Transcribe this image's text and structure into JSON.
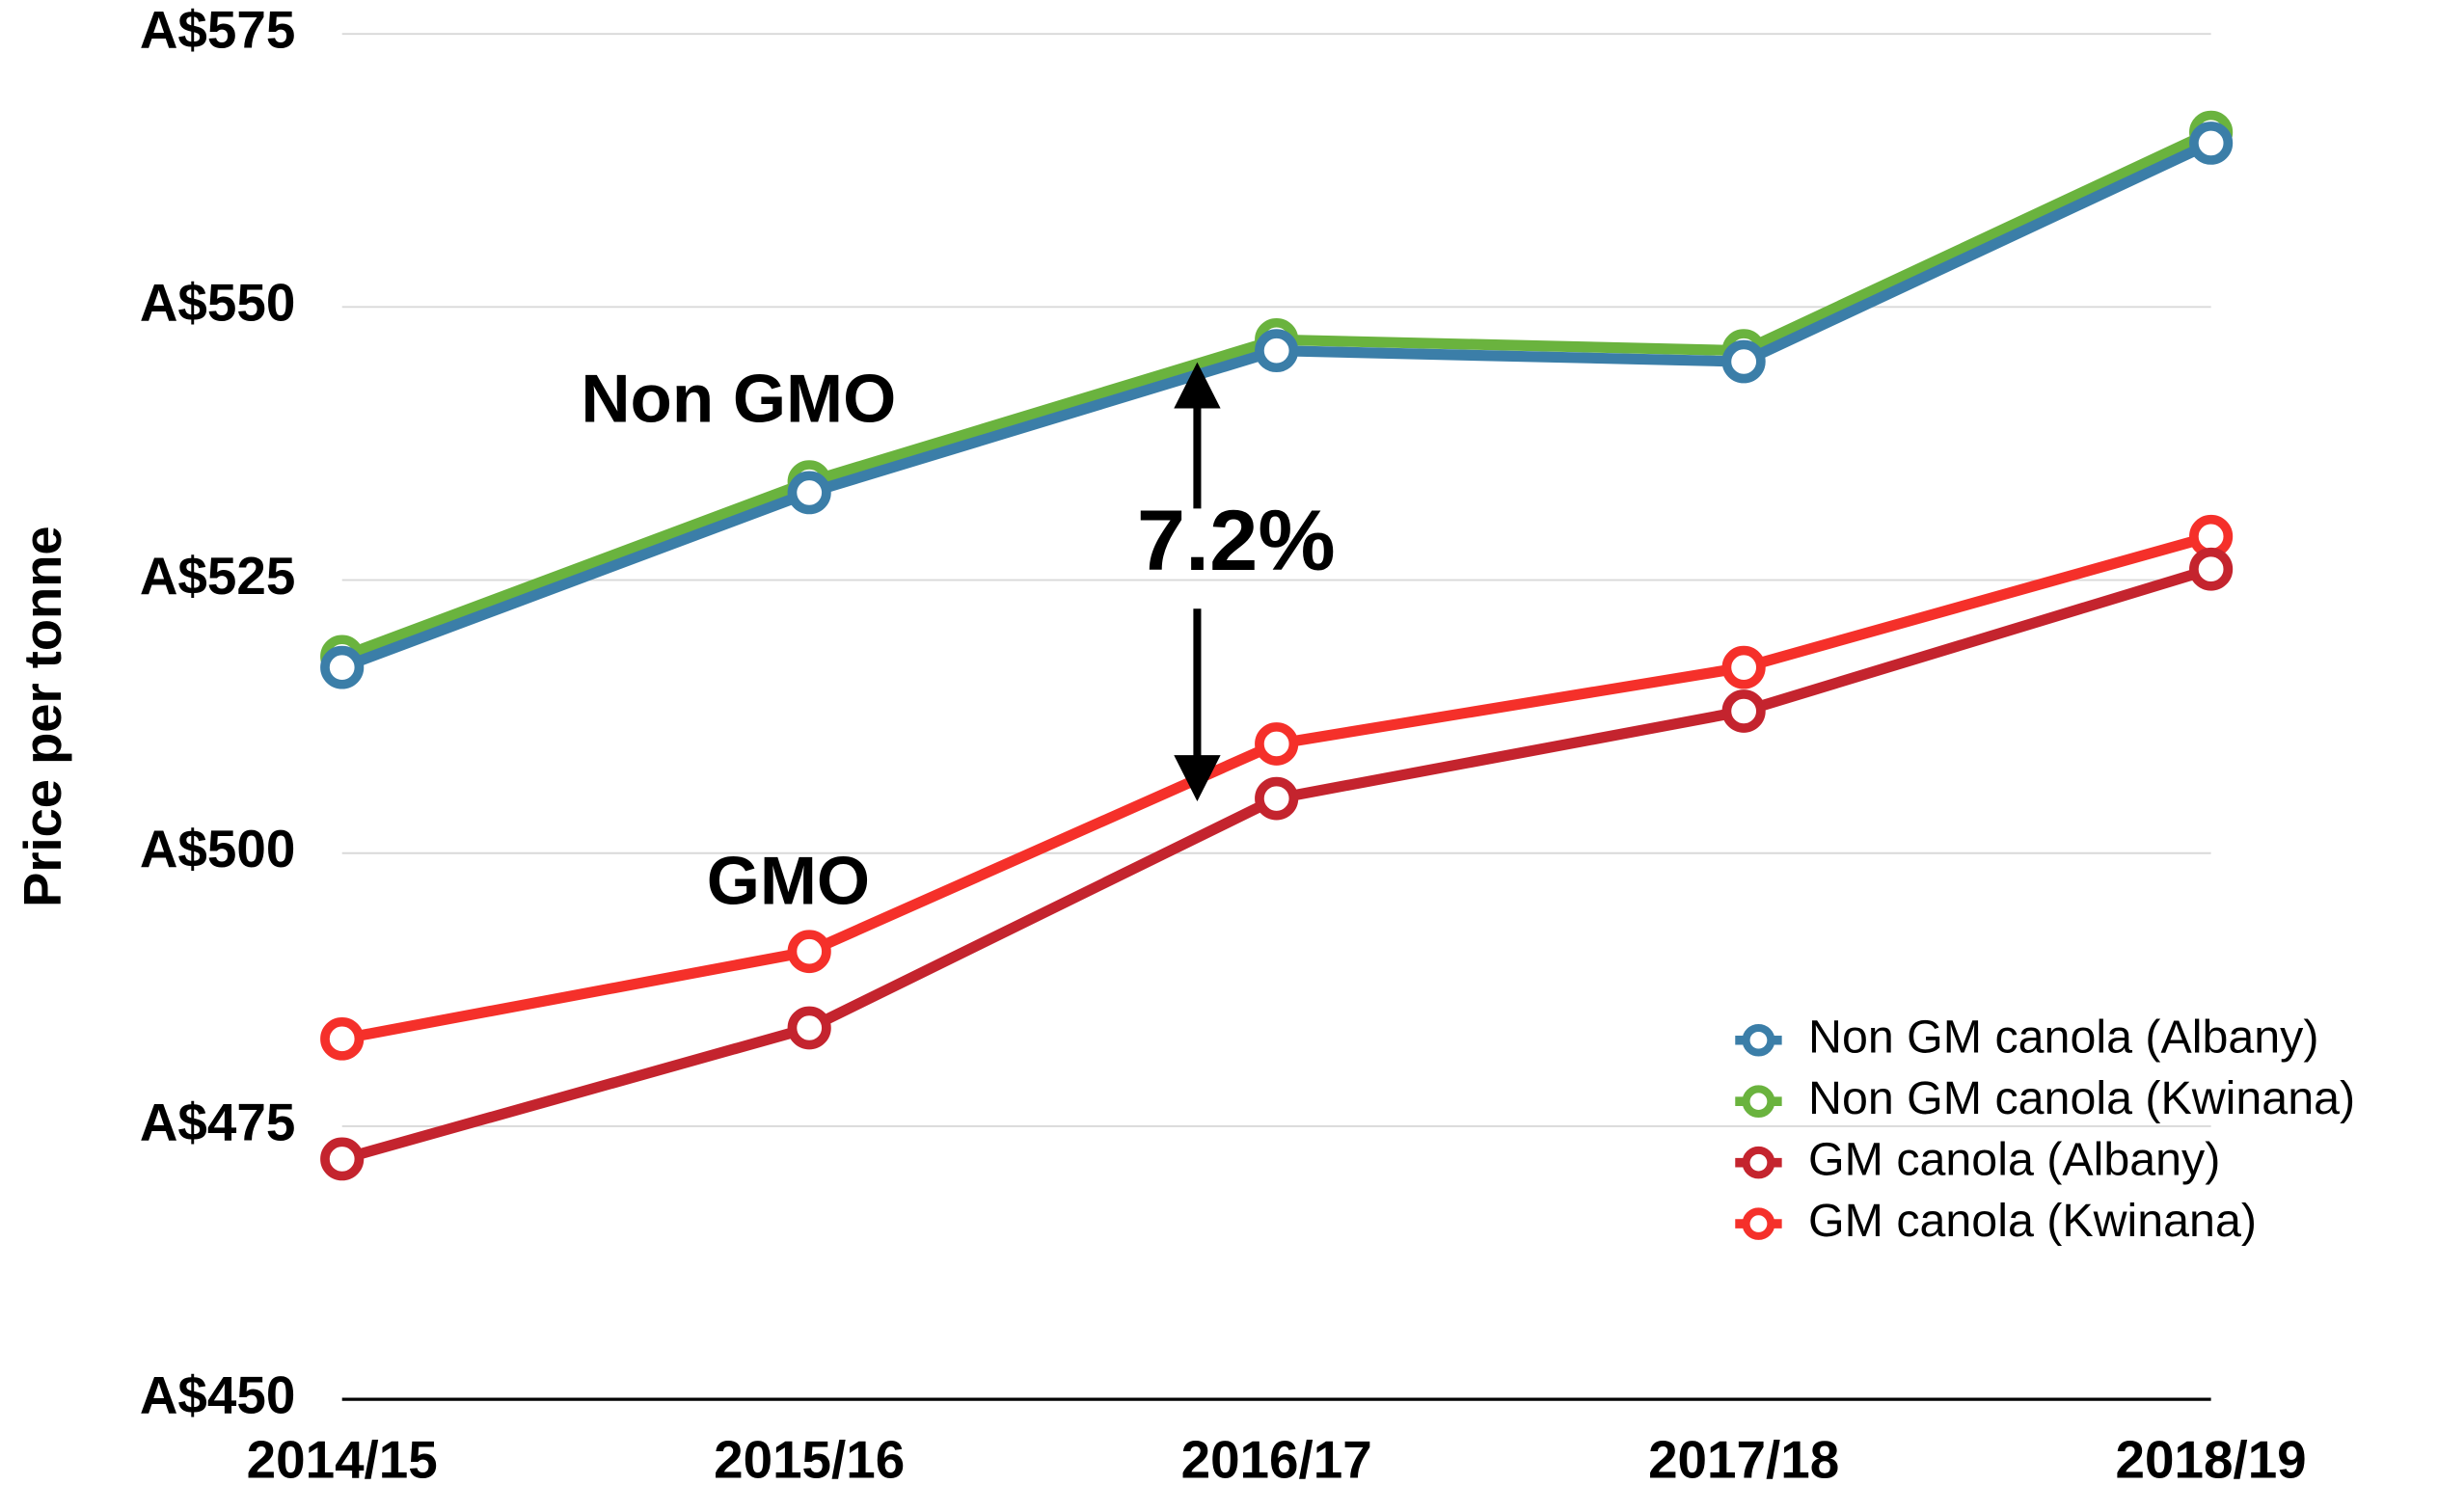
{
  "chart_data": {
    "type": "line",
    "y_axis_label": "Price per tonne",
    "categories": [
      "2014/15",
      "2015/16",
      "2016/17",
      "2017/18",
      "2018/19"
    ],
    "series": [
      {
        "name": "Non GM canola (Albany)",
        "color": "#3b7ea8",
        "values": [
          517,
          533,
          546,
          545,
          565
        ]
      },
      {
        "name": "Non GM canola (Kwinana)",
        "color": "#6ab33e",
        "values": [
          518,
          534,
          547,
          546,
          566
        ]
      },
      {
        "name": "GM canola (Albany)",
        "color": "#c4242e",
        "values": [
          472,
          484,
          505,
          513,
          526
        ]
      },
      {
        "name": "GM canola (Kwinana)",
        "color": "#f5302a",
        "values": [
          483,
          491,
          510,
          517,
          529
        ]
      }
    ],
    "ylim": [
      450,
      575
    ],
    "yticks": [
      {
        "value": 450,
        "label": "A$450"
      },
      {
        "value": 475,
        "label": "A$475"
      },
      {
        "value": 500,
        "label": "A$500"
      },
      {
        "value": 525,
        "label": "A$525"
      },
      {
        "value": 550,
        "label": "A$550"
      },
      {
        "value": 575,
        "label": "A$575"
      }
    ],
    "grid": true,
    "legend_position": "lower right",
    "annotations": [
      "Non GMO",
      "GMO",
      "7.2%"
    ]
  }
}
